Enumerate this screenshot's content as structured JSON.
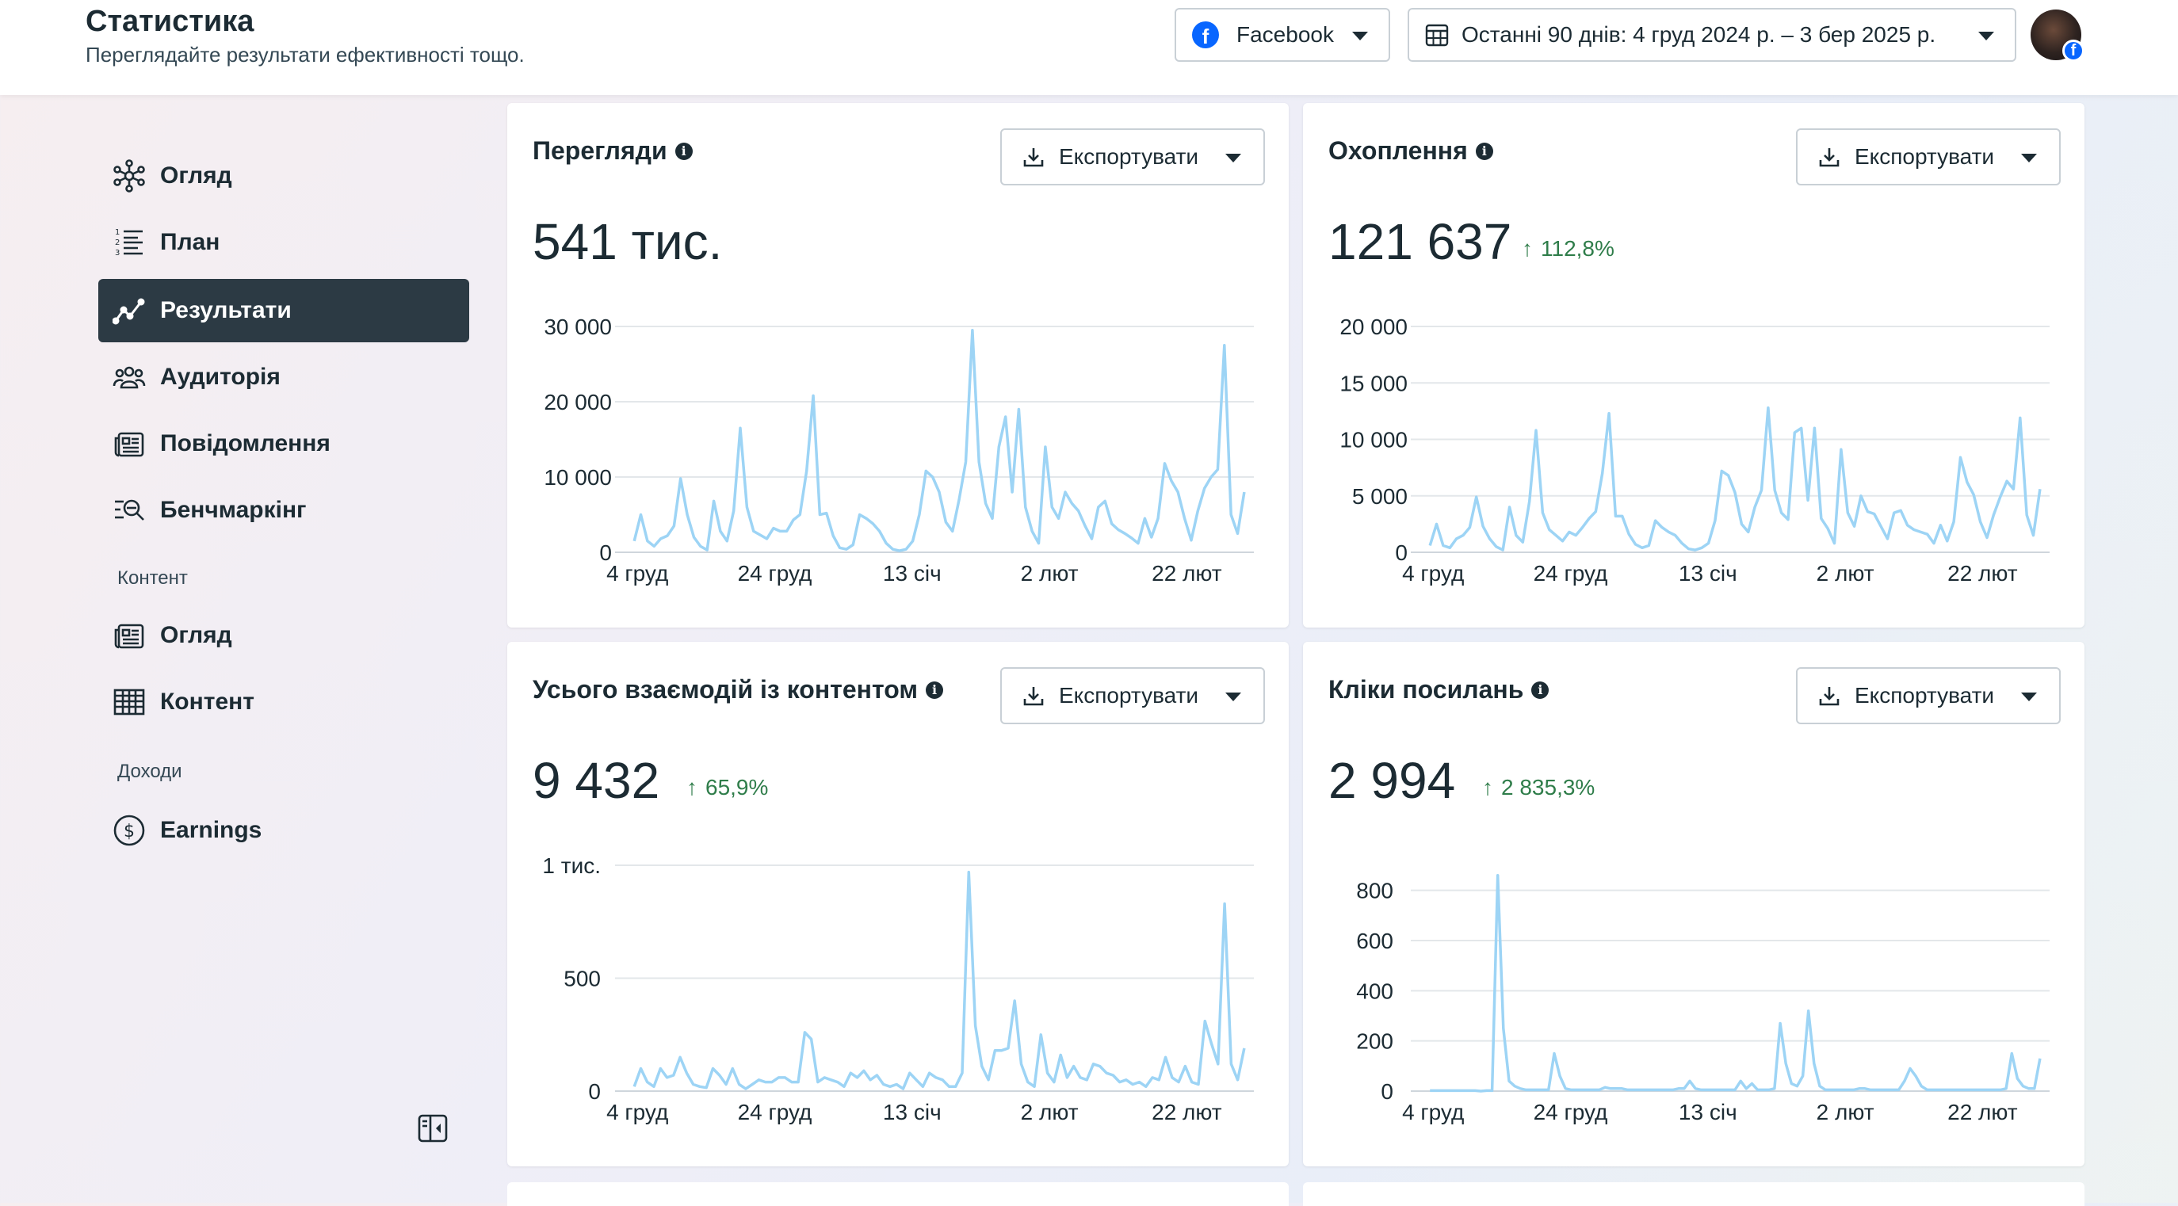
{
  "header": {
    "title": "Статистика",
    "subtitle": "Переглядайте результати ефективності тощо.",
    "platform": "Facebook",
    "date_range": "Останні 90 днів: 4 груд 2024 р. – 3 бер 2025 р."
  },
  "sidebar": {
    "items": [
      {
        "label": "Огляд",
        "icon": "overview-icon"
      },
      {
        "label": "План",
        "icon": "plan-list-icon"
      },
      {
        "label": "Результати",
        "icon": "results-trend-icon",
        "active": true
      },
      {
        "label": "Аудиторія",
        "icon": "audience-icon"
      },
      {
        "label": "Повідомлення",
        "icon": "messages-icon"
      },
      {
        "label": "Бенчмаркінг",
        "icon": "benchmark-icon"
      }
    ],
    "content_section": "Контент",
    "content_items": [
      {
        "label": "Огляд",
        "icon": "content-overview-icon"
      },
      {
        "label": "Контент",
        "icon": "content-table-icon"
      }
    ],
    "income_section": "Доходи",
    "income_items": [
      {
        "label": "Earnings",
        "icon": "dollar-icon"
      }
    ]
  },
  "export_label": "Експортувати",
  "line_color": "#9dd4f5",
  "delta_color": "#2f7d4a",
  "cards": [
    {
      "title": "Перегляди",
      "value": "541 тис.",
      "delta": ""
    },
    {
      "title": "Охоплення",
      "value": "121 637",
      "delta": "112,8%"
    },
    {
      "title": "Усього взаємодій із контентом",
      "value": "9 432",
      "delta": "65,9%"
    },
    {
      "title": "Кліки посилань",
      "value": "2 994",
      "delta": "2 835,3%"
    }
  ],
  "chart_data": [
    {
      "type": "line",
      "title": "Перегляди",
      "x_ticks": [
        "4 груд",
        "24 груд",
        "13 січ",
        "2 лют",
        "22 лют"
      ],
      "y_ticks": [
        "0",
        "10 000",
        "20 000",
        "30 000"
      ],
      "ylim": [
        0,
        30000
      ],
      "grid": true,
      "series": [
        {
          "values": [
            1500,
            5000,
            1500,
            800,
            1800,
            2200,
            3500,
            9800,
            5000,
            2000,
            800,
            300,
            6800,
            2800,
            1500,
            5500,
            16500,
            6000,
            2800,
            2300,
            1800,
            3200,
            2800,
            2800,
            4300,
            5000,
            10800,
            20800,
            5000,
            5200,
            2200,
            600,
            400,
            1000,
            5000,
            4500,
            3800,
            2800,
            1200,
            400,
            200,
            400,
            1500,
            5000,
            10800,
            10000,
            8000,
            4000,
            2800,
            7000,
            12000,
            29500,
            12000,
            6500,
            4500,
            14000,
            18000,
            8000,
            19000,
            6000,
            2800,
            1200,
            14000,
            6000,
            4500,
            8000,
            6500,
            5500,
            3500,
            1800,
            6000,
            6800,
            3800,
            3000,
            2500,
            1900,
            1200,
            4500,
            2000,
            4500,
            11800,
            9500,
            8000,
            4500,
            1600,
            5500,
            8500,
            10000,
            11000,
            27500,
            5000,
            2500,
            8000
          ]
        }
      ]
    },
    {
      "type": "line",
      "title": "Охоплення",
      "x_ticks": [
        "4 груд",
        "24 груд",
        "13 січ",
        "2 лют",
        "22 лют"
      ],
      "y_ticks": [
        "0",
        "5 000",
        "10 000",
        "15 000",
        "20 000"
      ],
      "ylim": [
        0,
        20000
      ],
      "grid": true,
      "series": [
        {
          "values": [
            600,
            2500,
            600,
            400,
            1200,
            1500,
            2200,
            4900,
            2300,
            1200,
            500,
            200,
            4000,
            1500,
            900,
            4500,
            10800,
            3500,
            2000,
            1500,
            1000,
            1800,
            1500,
            2200,
            3000,
            3600,
            7000,
            12300,
            3200,
            3200,
            1600,
            700,
            400,
            600,
            2800,
            2200,
            1800,
            1500,
            800,
            300,
            200,
            400,
            800,
            2800,
            7200,
            6800,
            5300,
            2500,
            1800,
            4000,
            5500,
            12800,
            5500,
            3500,
            2900,
            10600,
            11000,
            4600,
            11000,
            3000,
            2100,
            800,
            9100,
            3500,
            2300,
            5000,
            3600,
            3400,
            2300,
            1200,
            3500,
            3700,
            2400,
            2000,
            1800,
            1600,
            800,
            2400,
            1000,
            2700,
            8400,
            6200,
            5100,
            2700,
            1300,
            3300,
            4900,
            6300,
            5600,
            11900,
            3300,
            1500,
            5600
          ]
        }
      ]
    },
    {
      "type": "line",
      "title": "Усього взаємодій із контентом",
      "x_ticks": [
        "4 груд",
        "24 груд",
        "13 січ",
        "2 лют",
        "22 лют"
      ],
      "y_ticks": [
        "0",
        "500",
        "1 тис."
      ],
      "ylim": [
        0,
        1000
      ],
      "grid": true,
      "series": [
        {
          "values": [
            20,
            100,
            40,
            20,
            100,
            60,
            70,
            150,
            80,
            30,
            20,
            15,
            100,
            70,
            30,
            100,
            30,
            10,
            30,
            50,
            40,
            40,
            60,
            60,
            40,
            40,
            260,
            230,
            40,
            60,
            50,
            40,
            20,
            80,
            60,
            90,
            50,
            70,
            30,
            20,
            30,
            10,
            80,
            50,
            20,
            80,
            60,
            50,
            20,
            20,
            80,
            970,
            290,
            110,
            50,
            180,
            180,
            190,
            400,
            120,
            40,
            20,
            250,
            80,
            40,
            160,
            60,
            110,
            60,
            50,
            120,
            110,
            80,
            70,
            40,
            50,
            30,
            40,
            20,
            60,
            50,
            150,
            60,
            40,
            110,
            40,
            30,
            310,
            210,
            120,
            830,
            120,
            50,
            190
          ]
        }
      ]
    },
    {
      "type": "line",
      "title": "Кліки посилань",
      "x_ticks": [
        "4 груд",
        "24 груд",
        "13 січ",
        "2 лют",
        "22 лют"
      ],
      "y_ticks": [
        "0",
        "200",
        "400",
        "600",
        "800"
      ],
      "ylim": [
        0,
        900
      ],
      "grid": true,
      "series": [
        {
          "values": [
            2,
            2,
            2,
            2,
            2,
            2,
            2,
            2,
            2,
            0,
            2,
            2,
            860,
            250,
            40,
            20,
            10,
            5,
            5,
            5,
            5,
            5,
            150,
            60,
            10,
            5,
            5,
            5,
            5,
            5,
            5,
            15,
            10,
            10,
            10,
            5,
            5,
            5,
            5,
            5,
            5,
            5,
            5,
            5,
            10,
            10,
            40,
            10,
            5,
            5,
            5,
            5,
            5,
            5,
            5,
            40,
            10,
            30,
            5,
            5,
            5,
            10,
            270,
            110,
            30,
            20,
            60,
            320,
            110,
            20,
            5,
            5,
            5,
            5,
            5,
            5,
            10,
            10,
            5,
            5,
            5,
            5,
            5,
            5,
            40,
            90,
            60,
            20,
            5,
            5,
            5,
            5,
            5,
            5,
            5,
            5,
            5,
            5,
            5,
            5,
            5,
            5,
            10,
            150,
            50,
            20,
            10,
            10,
            130
          ]
        }
      ]
    }
  ]
}
